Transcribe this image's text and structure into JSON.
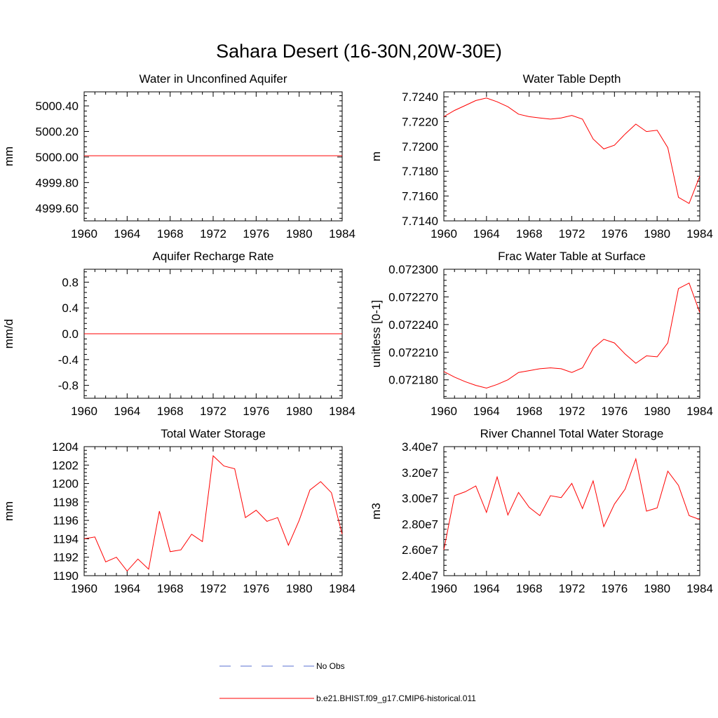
{
  "title": "Sahara Desert (16-30N,20W-30E)",
  "colors": {
    "model": "#ff0000",
    "obs": "#5a6fd0",
    "axis": "#000000"
  },
  "legend": {
    "placement": "bottom-center",
    "entries": [
      {
        "label": "No Obs",
        "style": "dashed",
        "color": "#5a6fd0"
      },
      {
        "label": "b.e21.BHIST.f09_g17.CMIP6-historical.011",
        "style": "solid",
        "color": "#ff0000"
      }
    ]
  },
  "chart_data": [
    {
      "type": "line",
      "title": "Water in Unconfined Aquifer",
      "ylabel": "mm",
      "xlim": [
        1960,
        1984
      ],
      "ylim": [
        4999.5,
        5000.51
      ],
      "xticks": [
        1960,
        1964,
        1968,
        1972,
        1976,
        1980,
        1984
      ],
      "yticks": [
        4999.6,
        4999.8,
        5000.0,
        5000.2,
        5000.4
      ],
      "ytick_labels": [
        "4999.60",
        "4999.80",
        "5000.00",
        "5000.20",
        "5000.40"
      ],
      "x": [
        1960,
        1984
      ],
      "series": [
        {
          "values": [
            5000.01,
            5000.01
          ]
        }
      ]
    },
    {
      "type": "line",
      "title": "Water Table Depth",
      "ylabel": "m",
      "xlim": [
        1960,
        1984
      ],
      "ylim": [
        7.714,
        7.7244
      ],
      "xticks": [
        1960,
        1964,
        1968,
        1972,
        1976,
        1980,
        1984
      ],
      "yticks": [
        7.714,
        7.716,
        7.718,
        7.72,
        7.722,
        7.724
      ],
      "ytick_labels": [
        "7.7140",
        "7.7160",
        "7.7180",
        "7.7200",
        "7.7220",
        "7.7240"
      ],
      "x": [
        1960,
        1961,
        1962,
        1963,
        1964,
        1965,
        1966,
        1967,
        1968,
        1969,
        1970,
        1971,
        1972,
        1973,
        1974,
        1975,
        1976,
        1977,
        1978,
        1979,
        1980,
        1981,
        1982,
        1983,
        1984
      ],
      "series": [
        {
          "values": [
            7.7224,
            7.7229,
            7.7233,
            7.7237,
            7.7239,
            7.7236,
            7.7232,
            7.7226,
            7.7224,
            7.7223,
            7.7222,
            7.7223,
            7.7225,
            7.7222,
            7.7206,
            7.7198,
            7.7201,
            7.721,
            7.7218,
            7.7212,
            7.7213,
            7.7199,
            7.7159,
            7.7154,
            7.7176
          ]
        }
      ]
    },
    {
      "type": "line",
      "title": "Aquifer Recharge Rate",
      "ylabel": "mm/d",
      "xlim": [
        1960,
        1984
      ],
      "ylim": [
        -1.0,
        1.0
      ],
      "xticks": [
        1960,
        1964,
        1968,
        1972,
        1976,
        1980,
        1984
      ],
      "yticks": [
        -0.8,
        -0.4,
        0.0,
        0.4,
        0.8
      ],
      "ytick_labels": [
        "-0.8",
        "-0.4",
        "0.0",
        "0.4",
        "0.8"
      ],
      "x": [
        1960,
        1984
      ],
      "series": [
        {
          "values": [
            0.0,
            0.0
          ]
        }
      ]
    },
    {
      "type": "line",
      "title": "Frac Water Table at Surface",
      "ylabel": "unitless [0-1]",
      "xlim": [
        1960,
        1984
      ],
      "ylim": [
        0.07216,
        0.0723
      ],
      "xticks": [
        1960,
        1964,
        1968,
        1972,
        1976,
        1980,
        1984
      ],
      "yticks": [
        0.07218,
        0.07221,
        0.07224,
        0.07227,
        0.0723
      ],
      "ytick_labels": [
        "0.072180",
        "0.072210",
        "0.072240",
        "0.072270",
        "0.072300"
      ],
      "x": [
        1960,
        1961,
        1962,
        1963,
        1964,
        1965,
        1966,
        1967,
        1968,
        1969,
        1970,
        1971,
        1972,
        1973,
        1974,
        1975,
        1976,
        1977,
        1978,
        1979,
        1980,
        1981,
        1982,
        1983,
        1984
      ],
      "series": [
        {
          "values": [
            0.072189,
            0.072183,
            0.072178,
            0.072174,
            0.072171,
            0.072175,
            0.07218,
            0.072188,
            0.07219,
            0.072192,
            0.072193,
            0.072192,
            0.072188,
            0.072193,
            0.072214,
            0.072224,
            0.07222,
            0.072208,
            0.072198,
            0.072206,
            0.072205,
            0.07222,
            0.072279,
            0.072285,
            0.072253
          ]
        }
      ]
    },
    {
      "type": "line",
      "title": "Total Water Storage",
      "ylabel": "mm",
      "xlim": [
        1960,
        1984
      ],
      "ylim": [
        1190,
        1204
      ],
      "xticks": [
        1960,
        1964,
        1968,
        1972,
        1976,
        1980,
        1984
      ],
      "yticks": [
        1190,
        1192,
        1194,
        1196,
        1198,
        1200,
        1202,
        1204
      ],
      "ytick_labels": [
        "1190",
        "1192",
        "1194",
        "1196",
        "1198",
        "1200",
        "1202",
        "1204"
      ],
      "x": [
        1960,
        1961,
        1962,
        1963,
        1964,
        1965,
        1966,
        1967,
        1968,
        1969,
        1970,
        1971,
        1972,
        1973,
        1974,
        1975,
        1976,
        1977,
        1978,
        1979,
        1980,
        1981,
        1982,
        1983,
        1984
      ],
      "series": [
        {
          "values": [
            1194.0,
            1194.2,
            1191.5,
            1192.0,
            1190.5,
            1191.8,
            1190.7,
            1197.0,
            1192.6,
            1192.8,
            1194.5,
            1193.7,
            1203.0,
            1201.9,
            1201.6,
            1196.3,
            1197.1,
            1195.9,
            1196.3,
            1193.3,
            1196.0,
            1199.3,
            1200.2,
            1199.0,
            1194.5
          ]
        }
      ]
    },
    {
      "type": "line",
      "title": "River Channel Total Water Storage",
      "ylabel": "m3",
      "xlim": [
        1960,
        1984
      ],
      "ylim": [
        24000000,
        34000000
      ],
      "xticks": [
        1960,
        1964,
        1968,
        1972,
        1976,
        1980,
        1984
      ],
      "yticks": [
        24000000,
        26000000,
        28000000,
        30000000,
        32000000,
        34000000
      ],
      "ytick_labels": [
        "2.40e7",
        "2.60e7",
        "2.80e7",
        "3.00e7",
        "3.20e7",
        "3.40e7"
      ],
      "x": [
        1960,
        1961,
        1962,
        1963,
        1964,
        1965,
        1966,
        1967,
        1968,
        1969,
        1970,
        1971,
        1972,
        1973,
        1974,
        1975,
        1976,
        1977,
        1978,
        1979,
        1980,
        1981,
        1982,
        1983,
        1984
      ],
      "series": [
        {
          "values": [
            26000000,
            30200000,
            30500000,
            30950000,
            28900000,
            31650000,
            28700000,
            30450000,
            29300000,
            28650000,
            30200000,
            30050000,
            31150000,
            29200000,
            31350000,
            27800000,
            29550000,
            30700000,
            33050000,
            29000000,
            29250000,
            32100000,
            31000000,
            28650000,
            28350000
          ]
        }
      ]
    }
  ]
}
